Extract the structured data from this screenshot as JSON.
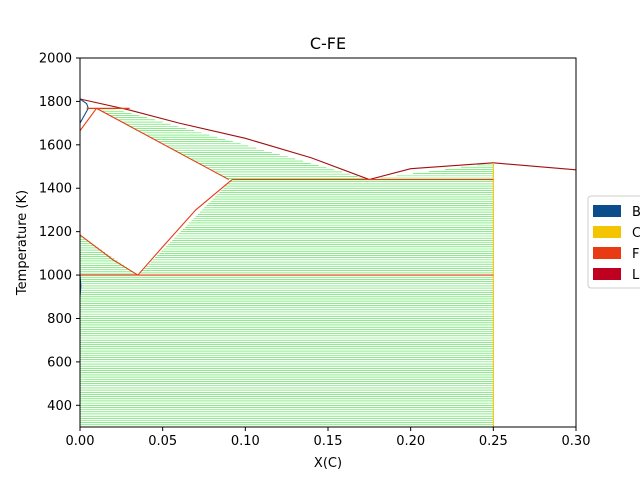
{
  "chart_data": {
    "type": "phase-diagram",
    "title": "C-FE",
    "xlabel": "X(C)",
    "ylabel": "Temperature (K)",
    "xlim": [
      0,
      0.3
    ],
    "ylim": [
      300,
      2000
    ],
    "xticks": [
      0,
      0.05,
      0.1,
      0.15,
      0.2,
      0.25,
      0.3
    ],
    "xtick_labels": [
      "0.00",
      "0.05",
      "0.10",
      "0.15",
      "0.20",
      "0.25",
      "0.30"
    ],
    "yticks": [
      400,
      600,
      800,
      1000,
      1200,
      1400,
      1600,
      1800,
      2000
    ],
    "ytick_labels": [
      "400",
      "600",
      "800",
      "1000",
      "1200",
      "1400",
      "1600",
      "1800",
      "2000"
    ],
    "legend": {
      "placement": "right",
      "entries": [
        {
          "label": "B",
          "color": "#0b4d8c"
        },
        {
          "label": "C",
          "color": "#f5c400"
        },
        {
          "label": "F",
          "color": "#e83a13"
        },
        {
          "label": "L",
          "color": "#c00020"
        }
      ]
    },
    "boundaries": [
      {
        "phase": "L",
        "color": "#a01010",
        "points": [
          [
            0.0,
            1811
          ],
          [
            0.03,
            1760
          ],
          [
            0.06,
            1700
          ],
          [
            0.1,
            1630
          ],
          [
            0.14,
            1540
          ],
          [
            0.175,
            1440
          ]
        ]
      },
      {
        "phase": "L",
        "color": "#a01010",
        "points": [
          [
            0.175,
            1440
          ],
          [
            0.2,
            1490
          ],
          [
            0.25,
            1517
          ],
          [
            0.3,
            1485
          ]
        ]
      },
      {
        "phase": "F",
        "color": "#e83a13",
        "points": [
          [
            0.0,
            1665
          ],
          [
            0.01,
            1768
          ]
        ]
      },
      {
        "phase": "F",
        "color": "#e83a13",
        "points": [
          [
            0.01,
            1768
          ],
          [
            0.09,
            1440
          ]
        ]
      },
      {
        "phase": "F",
        "color": "#e83a13",
        "points": [
          [
            0.0,
            1185
          ],
          [
            0.02,
            1070
          ],
          [
            0.035,
            1000
          ]
        ]
      },
      {
        "phase": "F",
        "color": "#e83a13",
        "points": [
          [
            0.035,
            1000
          ],
          [
            0.05,
            1130
          ],
          [
            0.07,
            1300
          ],
          [
            0.092,
            1440
          ]
        ]
      },
      {
        "phase": "B",
        "color": "#0b4d8c",
        "points": [
          [
            0.0,
            1811
          ],
          [
            0.004,
            1790
          ],
          [
            0.005,
            1768
          ],
          [
            0.0,
            1700
          ]
        ]
      },
      {
        "phase": "B",
        "color": "#0b4d8c",
        "points": [
          [
            0.0,
            1000
          ],
          [
            0.0005,
            950
          ],
          [
            0.0,
            900
          ]
        ]
      },
      {
        "phase": "C",
        "color": "#f5c400",
        "points": [
          [
            0.25,
            300
          ],
          [
            0.25,
            1517
          ]
        ]
      }
    ],
    "invariant_lines": [
      {
        "T": 1768,
        "x": [
          0.004,
          0.03
        ],
        "color": "#e83a13"
      },
      {
        "T": 1440,
        "x": [
          0.092,
          0.25
        ],
        "color": "#e83a13"
      },
      {
        "T": 1000,
        "x": [
          0.0,
          0.25
        ],
        "color": "#e83a13"
      }
    ],
    "tie_line_regions": [
      {
        "color": "#33dd33",
        "T": [
          1775,
          1440
        ],
        "left": [
          [
            0.01,
            1768
          ],
          [
            0.09,
            1440
          ]
        ],
        "right": [
          [
            0.0,
            1811
          ],
          [
            0.175,
            1440
          ]
        ]
      },
      {
        "color": "#33dd33",
        "T": [
          1517,
          1440
        ],
        "left": [
          [
            0.175,
            1440
          ],
          [
            0.25,
            1517
          ]
        ],
        "right": [
          [
            0.25,
            1440
          ],
          [
            0.25,
            1517
          ]
        ]
      },
      {
        "color": "#33dd33",
        "T": [
          1510,
          1485
        ],
        "left": [
          [
            0.25,
            1517
          ],
          [
            0.3,
            1485
          ]
        ],
        "right": [
          [
            0.25,
            1517
          ],
          [
            0.3,
            1485
          ]
        ]
      },
      {
        "color": "#33dd33",
        "T": [
          1440,
          1000
        ],
        "left": [
          [
            0.092,
            1440
          ],
          [
            0.035,
            1000
          ]
        ],
        "right": [
          [
            0.25,
            1440
          ],
          [
            0.25,
            1000
          ]
        ]
      },
      {
        "color": "#33dd33",
        "T": [
          1185,
          1000
        ],
        "left": [
          [
            0.0,
            1185
          ],
          [
            0.0,
            1000
          ]
        ],
        "right": [
          [
            0.0,
            1185
          ],
          [
            0.035,
            1000
          ]
        ]
      },
      {
        "color": "#33dd33",
        "T": [
          1000,
          300
        ],
        "left": [
          [
            0.0,
            1000
          ],
          [
            0.0,
            300
          ]
        ],
        "right": [
          [
            0.25,
            1000
          ],
          [
            0.25,
            300
          ]
        ]
      }
    ]
  }
}
